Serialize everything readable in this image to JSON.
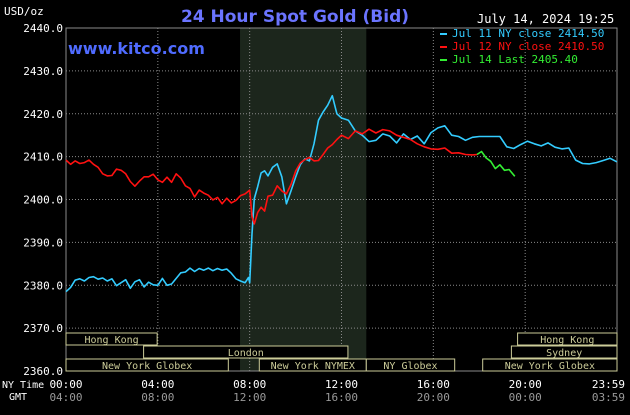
{
  "header": {
    "unit": "USD/oz",
    "title": "24 Hour Spot Gold (Bid)",
    "datetime": "July 14, 2024 19:25",
    "site": "www.kitco.com"
  },
  "colors": {
    "background": "#000000",
    "title": "#6b74ff",
    "site": "#4f6bff",
    "grid": "#8a8a8a",
    "session_shade": "#1c261c",
    "band_bg": "#cccc99",
    "band_text": "#2222cc",
    "axis_text": "#ffffff",
    "gmt_text": "#9a9a9a"
  },
  "chart_data": {
    "type": "line",
    "title": "24 Hour Spot Gold (Bid)",
    "ylabel": "USD/oz",
    "ylim": [
      2360,
      2440
    ],
    "yticks": [
      2440,
      2430,
      2420,
      2410,
      2400,
      2390,
      2380,
      2370,
      2360
    ],
    "ytick_labels": [
      "2440.0",
      "2430.0",
      "2420.0",
      "2410.0",
      "2400.0",
      "2390.0",
      "2380.0",
      "2370.0",
      "2360.0"
    ],
    "x_unit": "hours (NY Time)",
    "xlim": [
      0,
      24
    ],
    "xticks": [
      0,
      4,
      8,
      12,
      16,
      20,
      24
    ],
    "xtick_labels_ny": [
      "00:00",
      "04:00",
      "08:00",
      "12:00",
      "16:00",
      "20:00",
      "23:59"
    ],
    "xtick_labels_gmt": [
      "04:00",
      "08:00",
      "12:00",
      "16:00",
      "20:00",
      "00:00",
      "03:59"
    ],
    "x_row_label_ny": "NY Time",
    "x_row_label_gmt": "GMT",
    "grid": true,
    "shaded_session_hours": [
      7.58,
      13.08
    ],
    "legend_position": "top-right",
    "series": [
      {
        "name": "Jul 11 NY close 2414.50",
        "color": "#33ccff",
        "x": [
          0,
          0.2,
          0.4,
          0.6,
          0.8,
          1.0,
          1.2,
          1.4,
          1.6,
          1.8,
          2.0,
          2.2,
          2.4,
          2.6,
          2.8,
          3.0,
          3.2,
          3.4,
          3.6,
          3.8,
          4.0,
          4.2,
          4.4,
          4.6,
          4.8,
          5.0,
          5.2,
          5.4,
          5.6,
          5.8,
          6.0,
          6.2,
          6.4,
          6.6,
          6.8,
          7.0,
          7.2,
          7.4,
          7.6,
          7.8,
          7.95,
          8.0,
          8.1,
          8.2,
          8.35,
          8.5,
          8.65,
          8.8,
          9.0,
          9.2,
          9.4,
          9.6,
          9.8,
          10.0,
          10.2,
          10.4,
          10.6,
          10.8,
          11.0,
          11.2,
          11.4,
          11.6,
          11.8,
          12.0,
          12.3,
          12.6,
          12.9,
          13.2,
          13.5,
          13.8,
          14.1,
          14.4,
          14.7,
          15.0,
          15.3,
          15.6,
          15.9,
          16.2,
          16.5,
          16.8,
          17.1,
          17.4,
          17.7,
          18.0,
          18.3,
          18.6,
          18.9,
          19.2,
          19.5,
          19.8,
          20.1,
          20.4,
          20.7,
          21.0,
          21.3,
          21.6,
          21.9,
          22.2,
          22.5,
          22.8,
          23.1,
          23.4,
          23.7,
          23.99
        ],
        "values": [
          2378.5,
          2379.5,
          2381.2,
          2381.5,
          2381.0,
          2381.8,
          2382.0,
          2381.4,
          2381.7,
          2381.0,
          2381.5,
          2379.9,
          2380.6,
          2381.3,
          2379.3,
          2380.8,
          2381.3,
          2379.6,
          2380.7,
          2380.1,
          2380.0,
          2381.6,
          2380.0,
          2380.3,
          2381.6,
          2382.9,
          2383.1,
          2384.0,
          2383.2,
          2383.9,
          2383.5,
          2384.0,
          2383.4,
          2383.9,
          2383.5,
          2383.8,
          2382.8,
          2381.5,
          2381.0,
          2380.6,
          2381.8,
          2380.6,
          2392.0,
          2400.2,
          2403.0,
          2406.2,
          2406.7,
          2405.5,
          2407.5,
          2408.3,
          2405.3,
          2399.0,
          2402.0,
          2405.2,
          2408.1,
          2409.5,
          2409.0,
          2413.0,
          2418.5,
          2420.4,
          2422.0,
          2424.2,
          2420.0,
          2419.0,
          2418.5,
          2416.0,
          2415.0,
          2413.5,
          2413.8,
          2415.3,
          2414.8,
          2413.2,
          2415.3,
          2414.0,
          2414.8,
          2413.0,
          2415.6,
          2416.7,
          2417.2,
          2415.0,
          2414.7,
          2413.8,
          2414.5,
          2414.7,
          2414.7,
          2414.7,
          2414.7,
          2412.3,
          2411.9,
          2412.8,
          2413.6,
          2413.0,
          2412.5,
          2413.2,
          2412.2,
          2411.8,
          2412.0,
          2409.2,
          2408.4,
          2408.3,
          2408.6,
          2409.1,
          2409.6,
          2408.8
        ]
      },
      {
        "name": "Jul 12 NY close 2410.50",
        "color": "#ff1111",
        "x": [
          0,
          0.2,
          0.4,
          0.6,
          0.8,
          1.0,
          1.2,
          1.4,
          1.6,
          1.8,
          2.0,
          2.2,
          2.4,
          2.6,
          2.8,
          3.0,
          3.2,
          3.4,
          3.6,
          3.8,
          4.0,
          4.2,
          4.4,
          4.6,
          4.8,
          5.0,
          5.2,
          5.4,
          5.6,
          5.8,
          6.0,
          6.2,
          6.4,
          6.6,
          6.8,
          7.0,
          7.2,
          7.4,
          7.6,
          7.8,
          8.0,
          8.1,
          8.2,
          8.35,
          8.5,
          8.65,
          8.8,
          9.0,
          9.2,
          9.4,
          9.6,
          9.8,
          10.0,
          10.2,
          10.4,
          10.6,
          10.8,
          11.0,
          11.2,
          11.4,
          11.6,
          11.8,
          12.0,
          12.3,
          12.6,
          12.9,
          13.2,
          13.5,
          13.8,
          14.1,
          14.4,
          14.7,
          15.0,
          15.3,
          15.6,
          15.9,
          16.2,
          16.5,
          16.8,
          17.1,
          17.4,
          17.7,
          17.9
        ],
        "values": [
          2409.2,
          2408.2,
          2409.0,
          2408.4,
          2408.6,
          2409.2,
          2408.2,
          2407.5,
          2406.0,
          2405.5,
          2405.6,
          2407.1,
          2406.8,
          2406.0,
          2404.2,
          2403.1,
          2404.3,
          2405.3,
          2405.3,
          2405.9,
          2404.6,
          2404.0,
          2405.2,
          2404.0,
          2406.0,
          2405.0,
          2403.2,
          2402.6,
          2400.6,
          2402.2,
          2401.5,
          2401.0,
          2399.9,
          2400.5,
          2399.0,
          2400.3,
          2399.2,
          2399.8,
          2400.9,
          2401.3,
          2402.2,
          2396.0,
          2394.3,
          2397.0,
          2398.2,
          2397.3,
          2400.8,
          2401.0,
          2403.2,
          2402.0,
          2401.3,
          2403.5,
          2406.6,
          2408.5,
          2409.3,
          2409.8,
          2409.0,
          2409.1,
          2410.5,
          2412.0,
          2412.8,
          2414.0,
          2415.0,
          2414.2,
          2416.0,
          2415.3,
          2416.4,
          2415.5,
          2416.3,
          2416.0,
          2415.0,
          2414.5,
          2414.0,
          2413.0,
          2412.3,
          2411.8,
          2411.7,
          2412.0,
          2410.8,
          2410.9,
          2410.5,
          2410.4,
          2410.5
        ]
      },
      {
        "name": "Jul 14 Last 2405.40",
        "color": "#33ee33",
        "x": [
          17.9,
          18.1,
          18.3,
          18.5,
          18.7,
          18.9,
          19.1,
          19.3,
          19.55
        ],
        "values": [
          2410.5,
          2411.2,
          2409.7,
          2408.9,
          2407.2,
          2408.1,
          2406.8,
          2407.0,
          2405.4
        ]
      }
    ]
  },
  "market_bands": [
    {
      "label": "Hong Kong",
      "row": 0,
      "start": 0.0,
      "end": 3.97
    },
    {
      "label": "Hong Kong",
      "row": 0,
      "start": 19.67,
      "end": 24.0
    },
    {
      "label": "London",
      "row": 1,
      "start": 3.38,
      "end": 12.28
    },
    {
      "label": "Sydney",
      "row": 1,
      "start": 19.4,
      "end": 24.0
    },
    {
      "label": "New York Globex",
      "row": 2,
      "start": 0.0,
      "end": 7.07
    },
    {
      "label": "New York NYMEX",
      "row": 2,
      "start": 8.42,
      "end": 13.08
    },
    {
      "label": "NY Globex",
      "row": 2,
      "start": 13.08,
      "end": 16.93
    },
    {
      "label": "New York Globex",
      "row": 2,
      "start": 18.15,
      "end": 24.0
    }
  ]
}
